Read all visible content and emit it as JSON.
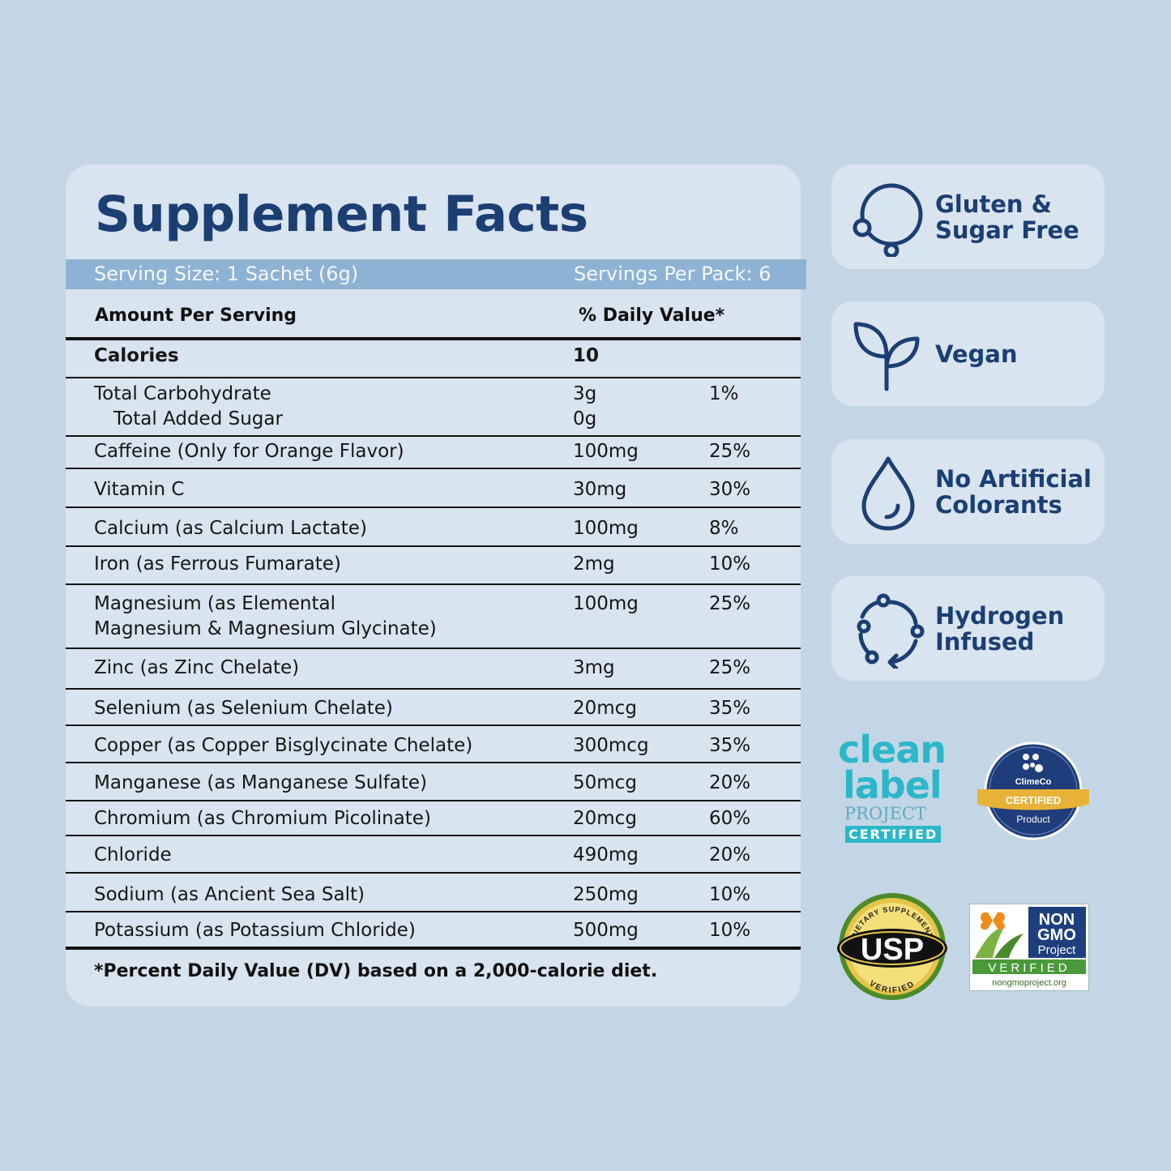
{
  "facts": {
    "title": "Supplement Facts",
    "serving_size": "Serving Size: 1 Sachet (6g)",
    "servings_per_pack": "Servings Per Pack: 6",
    "amount_header": "Amount Per Serving",
    "dv_header": "% Daily Value*",
    "calories_label": "Calories",
    "calories_value": "10",
    "rows": [
      {
        "name": "Total Carbohydrate",
        "sub": "Total Added Sugar",
        "amount": "3g",
        "sub_amount": "0g",
        "dv": "1%"
      },
      {
        "name": "Caffeine (Only for Orange Flavor)",
        "amount": "100mg",
        "dv": "25%"
      },
      {
        "name": "Vitamin C",
        "amount": "30mg",
        "dv": "30%"
      },
      {
        "name": "Calcium (as Calcium Lactate)",
        "amount": "100mg",
        "dv": "8%"
      },
      {
        "name": "Iron (as Ferrous Fumarate)",
        "amount": "2mg",
        "dv": "10%"
      },
      {
        "name": "Magnesium (as Elemental",
        "name2": "Magnesium & Magnesium Glycinate)",
        "amount": "100mg",
        "dv": "25%"
      },
      {
        "name": "Zinc (as Zinc Chelate)",
        "amount": "3mg",
        "dv": "25%"
      },
      {
        "name": "Selenium (as Selenium Chelate)",
        "amount": "20mcg",
        "dv": "35%"
      },
      {
        "name": "Copper (as Copper Bisglycinate Chelate)",
        "amount": "300mcg",
        "dv": "35%"
      },
      {
        "name": "Manganese (as Manganese Sulfate)",
        "amount": "50mcg",
        "dv": "20%"
      },
      {
        "name": "Chromium (as Chromium Picolinate)",
        "amount": "20mcg",
        "dv": "60%"
      },
      {
        "name": "Chloride",
        "amount": "490mg",
        "dv": "20%"
      },
      {
        "name": "Sodium (as Ancient Sea Salt)",
        "amount": "250mg",
        "dv": "10%"
      },
      {
        "name": "Potassium (as Potassium Chloride)",
        "amount": "500mg",
        "dv": "10%"
      }
    ],
    "footnote": "*Percent Daily Value (DV) based on a 2,000-calorie diet."
  },
  "badges": [
    {
      "line1": "Gluten &",
      "line2": "Sugar Free",
      "icon": "gluten-free-icon"
    },
    {
      "line1": "Vegan",
      "line2": "",
      "icon": "sprout-icon"
    },
    {
      "line1": "No Artificial",
      "line2": "Colorants",
      "icon": "droplet-icon"
    },
    {
      "line1": "Hydrogen",
      "line2": "Infused",
      "icon": "molecule-cycle-icon"
    }
  ],
  "certifications": {
    "clean_label": {
      "w1": "clean",
      "w2": "label",
      "w3": "PROJECT",
      "w4": "CERTIFIED"
    },
    "climeco": {
      "brand": "ClimeCo",
      "ribbon": "CERTIFIED",
      "sub": "Product"
    },
    "usp": {
      "top": "DIETARY SUPPLEMENT",
      "main": "USP",
      "bottom": "VERIFIED"
    },
    "nongmo": {
      "l1": "NON",
      "l2": "GMO",
      "l3": "Project",
      "l4": "VERIFIED",
      "url": "nongmoproject.org"
    }
  },
  "colors": {
    "background": "#c3d6e5",
    "panel": "#d8e4ef",
    "navy": "#1b3e73",
    "serving_bar": "#8eb2d4",
    "clean_label_teal": "#2bb7c9"
  }
}
